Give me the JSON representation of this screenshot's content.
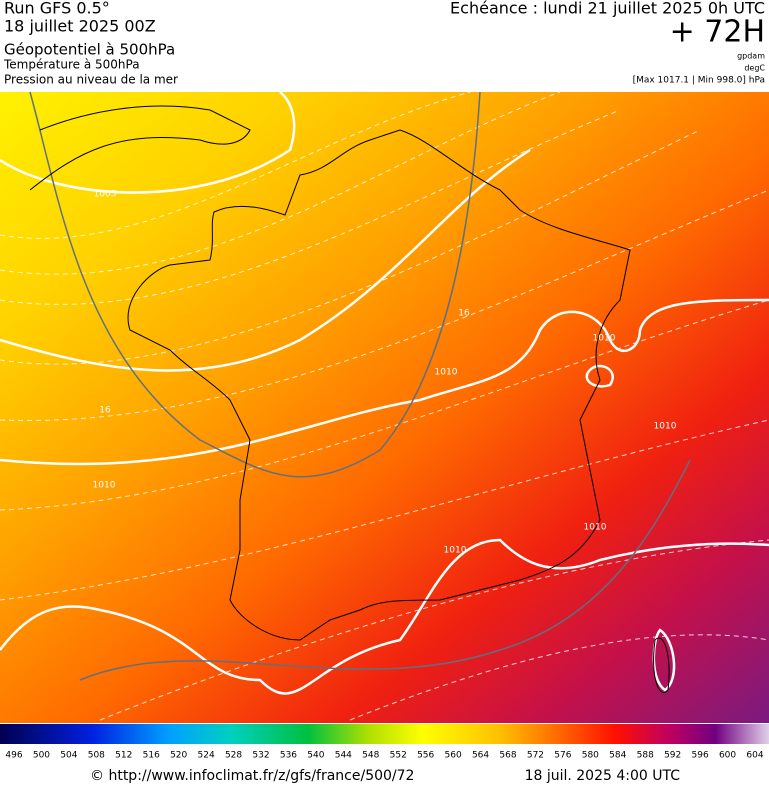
{
  "header": {
    "run": "Run GFS 0.5°",
    "date": "18 juillet 2025 00Z",
    "layer1": "Géopotentiel à 500hPa",
    "layer2": "Température à 500hPa",
    "layer3": "Pression au niveau de la mer",
    "echeance": "Echéance : lundi 21 juillet 2025 0h UTC",
    "lead": "+ 72H",
    "unit1": "gpdam",
    "unit2": "degC",
    "range": "[Max 1017.1 | Min 998.0] hPa"
  },
  "map": {
    "contour_labels": [
      "1005",
      "1010",
      "1010",
      "1010",
      "1010",
      "1010",
      "1010",
      "16",
      "16"
    ]
  },
  "colorbar": {
    "labels": [
      496,
      500,
      504,
      508,
      512,
      516,
      520,
      524,
      528,
      532,
      536,
      540,
      544,
      548,
      552,
      556,
      560,
      564,
      568,
      572,
      576,
      580,
      584,
      588,
      592,
      596,
      600,
      604
    ]
  },
  "footer": {
    "source": "© http://www.infoclimat.fr/z/gfs/france/500/72",
    "time": "18 juil. 2025  4:00 UTC"
  }
}
